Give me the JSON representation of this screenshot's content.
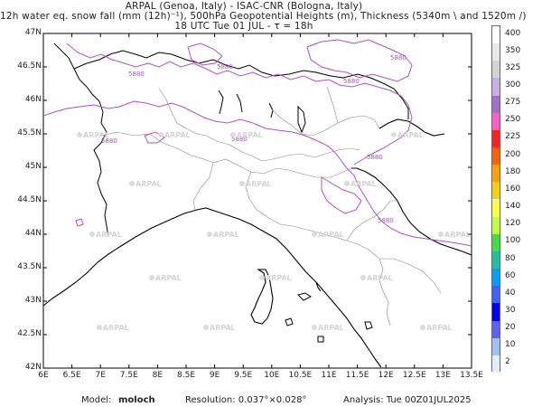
{
  "header": {
    "line1": "ARPAL (Genoa, Italy)  -  ISAC-CNR (Bologna, Italy)",
    "line2": "12h water eq. snow fall (mm (12h)⁻¹), 500hPa Geopotential Heights (m), Thickness (5340m \\ and 1520m /)",
    "line3": "18 UTC Tue 01 JUL  -  τ = 18h"
  },
  "map": {
    "lat_labels": [
      "47N",
      "46.5N",
      "46N",
      "45.5N",
      "45N",
      "44.5N",
      "44N",
      "43.5N",
      "43N",
      "42.5N",
      "42N"
    ],
    "lon_labels": [
      "6E",
      "6.5E",
      "7E",
      "7.5E",
      "8E",
      "8.5E",
      "9E",
      "9.5E",
      "10E",
      "10.5E",
      "11E",
      "11.5E",
      "12E",
      "12.5E",
      "13E",
      "13.5E"
    ],
    "lat_range": [
      42,
      47
    ],
    "lon_range": [
      6,
      13.5
    ],
    "contour_label": "5880",
    "contour_color": "#b050c8",
    "watermark": "ARPAL"
  },
  "colorbar": {
    "labels": [
      "400",
      "350",
      "325",
      "300",
      "275",
      "250",
      "225",
      "200",
      "180",
      "160",
      "140",
      "120",
      "100",
      "80",
      "60",
      "40",
      "30",
      "20",
      "10",
      "2"
    ],
    "colors": [
      "#ffffff",
      "#e8e8e8",
      "#d4d4d4",
      "#c8b0e0",
      "#a070d0",
      "#ff60c0",
      "#ff2020",
      "#ff6000",
      "#ffa000",
      "#ffd000",
      "#ffff40",
      "#c0ff40",
      "#40e040",
      "#20c0a0",
      "#00a0ff",
      "#4060ff",
      "#0000ff",
      "#6060ff",
      "#a0c0ff",
      "#e0f0ff"
    ]
  },
  "footer": {
    "model_label": "Model:",
    "model_value": "moloch",
    "resolution": "Resolution: 0.037°×0.028°",
    "analysis": "Analysis: Tue 00Z01JUL2025"
  }
}
